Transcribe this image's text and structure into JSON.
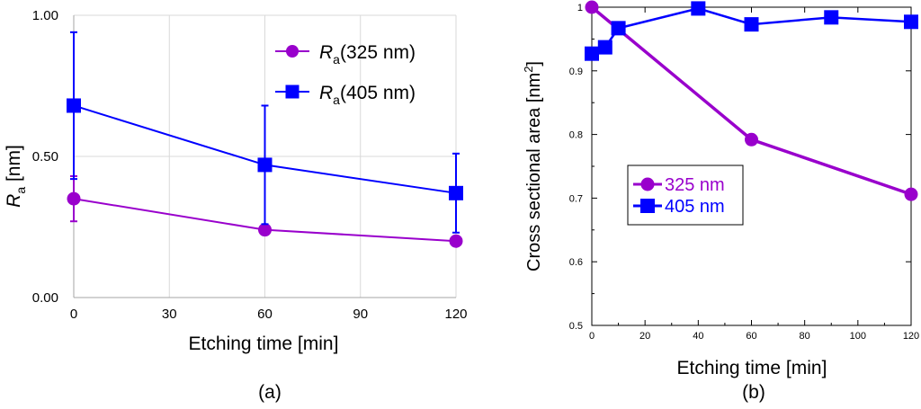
{
  "colors": {
    "purple": "#9900cc",
    "blue": "#0000ff",
    "grid": "#d9d9d9",
    "axis_left": "#a6a6a6",
    "axis_right": "#000000",
    "text": "#000000"
  },
  "chart_data": [
    {
      "panel_label": "(a)",
      "type": "line",
      "xlabel": "Etching time [min]",
      "ylabel_main": "R",
      "ylabel_sub": "a",
      "ylabel_tail": " [nm]",
      "xlim": [
        0,
        120
      ],
      "ylim": [
        0,
        1
      ],
      "xticks": [
        0,
        30,
        60,
        90,
        120
      ],
      "xtick_labels": [
        "0",
        "30",
        "60",
        "90",
        "120"
      ],
      "yticks": [
        0,
        0.5,
        1
      ],
      "ytick_labels": [
        "0.00",
        "0.50",
        "1.00"
      ],
      "grid": true,
      "legend_position": "top-right",
      "series": [
        {
          "name": "R_a (325 nm)",
          "legend_main": "R",
          "legend_sub": "a",
          "legend_tail": "(325 nm)",
          "color": "#9900cc",
          "marker": "circle",
          "x": [
            0,
            60,
            120
          ],
          "y": [
            0.35,
            0.24,
            0.2
          ],
          "err": [
            0.08,
            0,
            0
          ]
        },
        {
          "name": "R_a (405 nm)",
          "legend_main": "R",
          "legend_sub": "a",
          "legend_tail": "(405 nm)",
          "color": "#0000ff",
          "marker": "square",
          "x": [
            0,
            60,
            120
          ],
          "y": [
            0.68,
            0.47,
            0.37
          ],
          "err": [
            0.26,
            0.21,
            0.14
          ]
        }
      ]
    },
    {
      "panel_label": "(b)",
      "type": "line",
      "xlabel": "Etching time [min]",
      "ylabel_main": "Cross sectional area [nm",
      "ylabel_sup": "2",
      "ylabel_tail": "]",
      "xlim": [
        0,
        120
      ],
      "ylim": [
        0.5,
        1
      ],
      "xticks": [
        0,
        20,
        40,
        60,
        80,
        100,
        120
      ],
      "xtick_labels": [
        "0",
        "20",
        "40",
        "60",
        "80",
        "100",
        "120"
      ],
      "yticks": [
        0.5,
        0.6,
        0.7,
        0.8,
        0.9,
        1
      ],
      "ytick_labels": [
        "0.5",
        "0.6",
        "0.7",
        "0.8",
        "0.9",
        "1"
      ],
      "grid": false,
      "legend_position": "center-left",
      "series": [
        {
          "name": "325 nm",
          "color": "#9900cc",
          "marker": "circle",
          "x": [
            0,
            60,
            120
          ],
          "y": [
            1.0,
            0.792,
            0.706
          ]
        },
        {
          "name": "405 nm",
          "color": "#0000ff",
          "marker": "square",
          "x": [
            0,
            5,
            10,
            40,
            60,
            90,
            120
          ],
          "y": [
            0.927,
            0.937,
            0.967,
            0.998,
            0.973,
            0.984,
            0.977
          ]
        }
      ]
    }
  ]
}
